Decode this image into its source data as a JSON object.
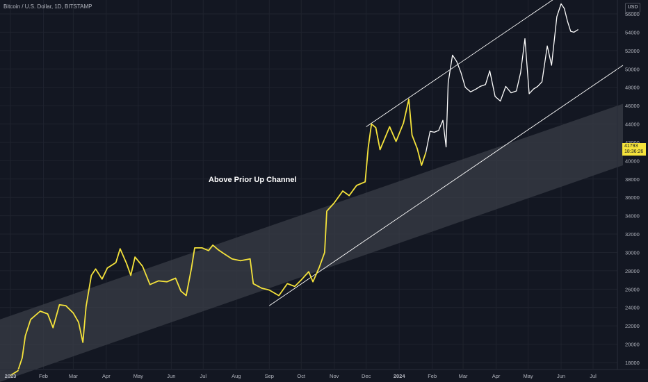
{
  "header": {
    "symbol": "Bitcoin / U.S. Dollar, 1D, BITSTAMP",
    "currency_button": "USD"
  },
  "price_tag": {
    "price": "41793",
    "countdown": "18:36:26"
  },
  "colors": {
    "background": "#131722",
    "yellow_series": "#f5e33b",
    "white_series": "#ffffff",
    "channel_fill": "#3a3d47"
  },
  "chart_data": {
    "type": "line",
    "title": "",
    "xlabel": "",
    "ylabel": "",
    "ylim": [
      16700,
      57800
    ],
    "y_ticks": [
      18000,
      20000,
      22000,
      24000,
      26000,
      28000,
      30000,
      32000,
      34000,
      36000,
      38000,
      40000,
      42000,
      44000,
      46000,
      48000,
      50000,
      52000,
      54000,
      56000
    ],
    "x_ticks": [
      {
        "label": "2023",
        "date": "2023-01-01"
      },
      {
        "label": "Feb",
        "date": "2023-02-01"
      },
      {
        "label": "Mar",
        "date": "2023-03-01"
      },
      {
        "label": "Apr",
        "date": "2023-04-01"
      },
      {
        "label": "May",
        "date": "2023-05-01"
      },
      {
        "label": "Jun",
        "date": "2023-06-01"
      },
      {
        "label": "Jul",
        "date": "2023-07-01"
      },
      {
        "label": "Aug",
        "date": "2023-08-01"
      },
      {
        "label": "Sep",
        "date": "2023-09-01"
      },
      {
        "label": "Oct",
        "date": "2023-10-01"
      },
      {
        "label": "Nov",
        "date": "2023-11-01"
      },
      {
        "label": "Dec",
        "date": "2023-12-01"
      },
      {
        "label": "2024",
        "date": "2024-01-01"
      },
      {
        "label": "Feb",
        "date": "2024-02-01"
      },
      {
        "label": "Mar",
        "date": "2024-03-01"
      },
      {
        "label": "Apr",
        "date": "2024-04-01"
      },
      {
        "label": "May",
        "date": "2024-05-01"
      },
      {
        "label": "Jun",
        "date": "2024-06-01"
      },
      {
        "label": "Jul",
        "date": "2024-07-01"
      }
    ],
    "annotations": [
      "Above Prior Up Channel"
    ],
    "series": [
      {
        "color": "#f5e33b",
        "points": [
          [
            "2023-01-01",
            16600
          ],
          [
            "2023-01-08",
            17100
          ],
          [
            "2023-01-12",
            18500
          ],
          [
            "2023-01-15",
            20900
          ],
          [
            "2023-01-20",
            22700
          ],
          [
            "2023-01-29",
            23600
          ],
          [
            "2023-02-05",
            23300
          ],
          [
            "2023-02-10",
            21800
          ],
          [
            "2023-02-16",
            24300
          ],
          [
            "2023-02-22",
            24200
          ],
          [
            "2023-03-01",
            23400
          ],
          [
            "2023-03-06",
            22400
          ],
          [
            "2023-03-10",
            20200
          ],
          [
            "2023-03-13",
            24100
          ],
          [
            "2023-03-18",
            27500
          ],
          [
            "2023-03-22",
            28200
          ],
          [
            "2023-03-28",
            27100
          ],
          [
            "2023-04-02",
            28300
          ],
          [
            "2023-04-10",
            28900
          ],
          [
            "2023-04-14",
            30400
          ],
          [
            "2023-04-20",
            28800
          ],
          [
            "2023-04-24",
            27500
          ],
          [
            "2023-04-28",
            29500
          ],
          [
            "2023-05-05",
            28500
          ],
          [
            "2023-05-12",
            26500
          ],
          [
            "2023-05-20",
            26900
          ],
          [
            "2023-05-28",
            26800
          ],
          [
            "2023-06-05",
            27200
          ],
          [
            "2023-06-10",
            25800
          ],
          [
            "2023-06-15",
            25300
          ],
          [
            "2023-06-20",
            28300
          ],
          [
            "2023-06-23",
            30500
          ],
          [
            "2023-06-30",
            30500
          ],
          [
            "2023-07-06",
            30200
          ],
          [
            "2023-07-10",
            30800
          ],
          [
            "2023-07-15",
            30300
          ],
          [
            "2023-07-20",
            29900
          ],
          [
            "2023-07-28",
            29300
          ],
          [
            "2023-08-05",
            29100
          ],
          [
            "2023-08-14",
            29300
          ],
          [
            "2023-08-17",
            26600
          ],
          [
            "2023-08-25",
            26100
          ],
          [
            "2023-09-01",
            25900
          ],
          [
            "2023-09-10",
            25300
          ],
          [
            "2023-09-18",
            26600
          ],
          [
            "2023-09-25",
            26300
          ],
          [
            "2023-10-01",
            27000
          ],
          [
            "2023-10-08",
            27900
          ],
          [
            "2023-10-12",
            26800
          ],
          [
            "2023-10-18",
            28400
          ],
          [
            "2023-10-23",
            30000
          ],
          [
            "2023-10-25",
            34500
          ],
          [
            "2023-11-01",
            35400
          ],
          [
            "2023-11-09",
            36700
          ],
          [
            "2023-11-15",
            36200
          ],
          [
            "2023-11-22",
            37300
          ],
          [
            "2023-11-30",
            37700
          ],
          [
            "2023-12-03",
            41500
          ],
          [
            "2023-12-06",
            44000
          ],
          [
            "2023-12-10",
            43600
          ],
          [
            "2023-12-14",
            41200
          ],
          [
            "2023-12-18",
            42300
          ],
          [
            "2023-12-23",
            43700
          ],
          [
            "2023-12-29",
            42100
          ],
          [
            "2024-01-05",
            44100
          ],
          [
            "2024-01-10",
            46700
          ],
          [
            "2024-01-13",
            42800
          ],
          [
            "2024-01-18",
            41300
          ],
          [
            "2024-01-22",
            39500
          ],
          [
            "2024-01-26",
            40900
          ]
        ]
      },
      {
        "color": "#ffffff",
        "points": [
          [
            "2024-01-26",
            40900
          ],
          [
            "2024-01-30",
            43200
          ],
          [
            "2024-02-03",
            43100
          ],
          [
            "2024-02-07",
            43300
          ],
          [
            "2024-02-11",
            44400
          ],
          [
            "2024-02-14",
            41500
          ],
          [
            "2024-02-16",
            48500
          ],
          [
            "2024-02-20",
            51500
          ],
          [
            "2024-02-24",
            50800
          ],
          [
            "2024-02-28",
            49600
          ],
          [
            "2024-03-03",
            48000
          ],
          [
            "2024-03-08",
            47500
          ],
          [
            "2024-03-13",
            47800
          ],
          [
            "2024-03-17",
            48100
          ],
          [
            "2024-03-22",
            48300
          ],
          [
            "2024-03-26",
            49800
          ],
          [
            "2024-03-31",
            47000
          ],
          [
            "2024-04-05",
            46500
          ],
          [
            "2024-04-10",
            48100
          ],
          [
            "2024-04-15",
            47400
          ],
          [
            "2024-04-20",
            47600
          ],
          [
            "2024-04-24",
            49600
          ],
          [
            "2024-04-28",
            53300
          ],
          [
            "2024-05-02",
            47300
          ],
          [
            "2024-05-06",
            47800
          ],
          [
            "2024-05-10",
            48100
          ],
          [
            "2024-05-14",
            48600
          ],
          [
            "2024-05-19",
            52500
          ],
          [
            "2024-05-23",
            50400
          ],
          [
            "2024-05-28",
            55700
          ],
          [
            "2024-06-01",
            57100
          ],
          [
            "2024-06-04",
            56600
          ],
          [
            "2024-06-07",
            55200
          ],
          [
            "2024-06-10",
            54100
          ],
          [
            "2024-06-13",
            54000
          ],
          [
            "2024-06-17",
            54300
          ]
        ]
      }
    ]
  }
}
